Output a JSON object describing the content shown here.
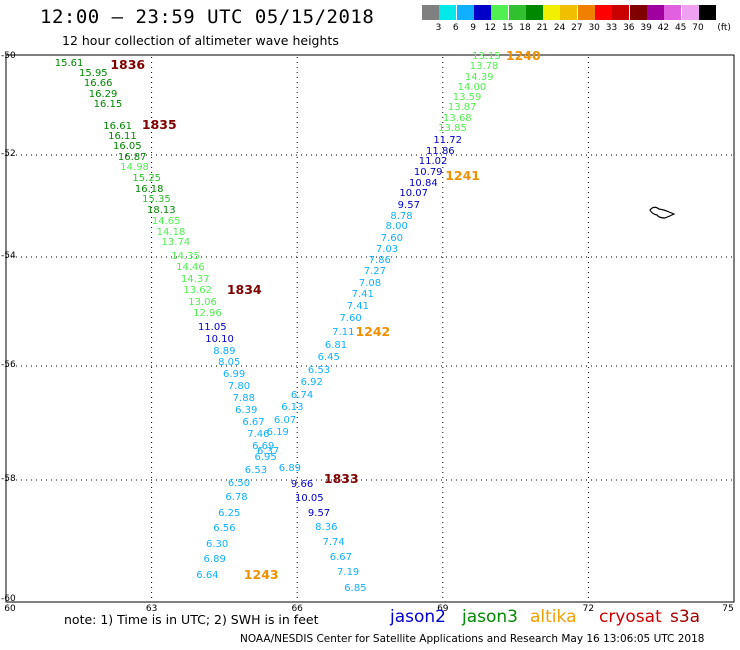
{
  "header": {
    "title": "12:00 – 23:59 UTC 05/15/2018",
    "subtitle": "12 hour collection of altimeter wave heights"
  },
  "legend": {
    "unit": "(ft)",
    "bins": [
      {
        "label": "3",
        "color": "#808080"
      },
      {
        "label": "6",
        "color": "#00e8e8"
      },
      {
        "label": "9",
        "color": "#10b0ff"
      },
      {
        "label": "12",
        "color": "#0000c8"
      },
      {
        "label": "15",
        "color": "#50f050"
      },
      {
        "label": "18",
        "color": "#30c030"
      },
      {
        "label": "21",
        "color": "#008800"
      },
      {
        "label": "24",
        "color": "#f0f000"
      },
      {
        "label": "27",
        "color": "#f0c000"
      },
      {
        "label": "30",
        "color": "#f08000"
      },
      {
        "label": "33",
        "color": "#ff0000"
      },
      {
        "label": "36",
        "color": "#c80000"
      },
      {
        "label": "39",
        "color": "#800000"
      },
      {
        "label": "42",
        "color": "#a000a0"
      },
      {
        "label": "45",
        "color": "#e060e0"
      },
      {
        "label": "70",
        "color": "#f0a0f0"
      },
      {
        "label": "",
        "color": "#000000"
      }
    ]
  },
  "axes": {
    "lon_labels": [
      "60",
      "63",
      "66",
      "69",
      "72",
      "75"
    ],
    "lat_labels": [
      "-50",
      "-52",
      "-54",
      "-56",
      "-58",
      "-60"
    ],
    "lon_range": [
      60,
      75
    ],
    "lat_range": [
      -50,
      -60
    ]
  },
  "footer": {
    "note": "note:  1) Time is in UTC;  2) SWH is in feet",
    "satellites": [
      {
        "name": "jason2",
        "color": "#0000d0"
      },
      {
        "name": "jason3",
        "color": "#008800"
      },
      {
        "name": "altika",
        "color": "#f0a000"
      },
      {
        "name": "cryosat",
        "color": "#d00000"
      },
      {
        "name": "s3a",
        "color": "#a00000"
      }
    ],
    "credit": "NOAA/NESDIS Center for Satellite Applications and Research    May 16 13:06:05 UTC 2018"
  },
  "wave_heights": [
    {
      "v": "15.61",
      "lon": 61.3,
      "lat": -50.15,
      "c": "#008800"
    },
    {
      "v": "15.95",
      "lon": 61.8,
      "lat": -50.35,
      "c": "#008800"
    },
    {
      "v": "16.66",
      "lon": 61.9,
      "lat": -50.56,
      "c": "#008800"
    },
    {
      "v": "16.29",
      "lon": 62.0,
      "lat": -50.78,
      "c": "#008800"
    },
    {
      "v": "16.15",
      "lon": 62.1,
      "lat": -50.98,
      "c": "#008800"
    },
    {
      "v": "16.61",
      "lon": 62.3,
      "lat": -51.42,
      "c": "#008800"
    },
    {
      "v": "16.11",
      "lon": 62.4,
      "lat": -51.63,
      "c": "#008800"
    },
    {
      "v": "16.05",
      "lon": 62.5,
      "lat": -51.84,
      "c": "#008800"
    },
    {
      "v": "16.87",
      "lon": 62.6,
      "lat": -52.05,
      "c": "#008800"
    },
    {
      "v": "14.98",
      "lon": 62.65,
      "lat": -52.26,
      "c": "#50f050"
    },
    {
      "v": "15.25",
      "lon": 62.9,
      "lat": -52.47,
      "c": "#30c030"
    },
    {
      "v": "16.18",
      "lon": 62.95,
      "lat": -52.68,
      "c": "#008800"
    },
    {
      "v": "15.35",
      "lon": 63.1,
      "lat": -52.89,
      "c": "#30c030"
    },
    {
      "v": "18.13",
      "lon": 63.2,
      "lat": -53.1,
      "c": "#008800"
    },
    {
      "v": "14.65",
      "lon": 63.3,
      "lat": -53.31,
      "c": "#50f050"
    },
    {
      "v": "14.18",
      "lon": 63.4,
      "lat": -53.52,
      "c": "#50f050"
    },
    {
      "v": "13.74",
      "lon": 63.5,
      "lat": -53.73,
      "c": "#50f050"
    },
    {
      "v": "14.35",
      "lon": 63.7,
      "lat": -54.0,
      "c": "#50f050"
    },
    {
      "v": "14.46",
      "lon": 63.8,
      "lat": -54.21,
      "c": "#50f050"
    },
    {
      "v": "14.37",
      "lon": 63.9,
      "lat": -54.42,
      "c": "#50f050"
    },
    {
      "v": "13.62",
      "lon": 63.95,
      "lat": -54.63,
      "c": "#50f050"
    },
    {
      "v": "13.06",
      "lon": 64.05,
      "lat": -54.84,
      "c": "#50f050"
    },
    {
      "v": "12.96",
      "lon": 64.15,
      "lat": -55.05,
      "c": "#50f050"
    },
    {
      "v": "11.05",
      "lon": 64.25,
      "lat": -55.31,
      "c": "#0000c8"
    },
    {
      "v": "10.10",
      "lon": 64.4,
      "lat": -55.52,
      "c": "#0000c8"
    },
    {
      "v": "8.89",
      "lon": 64.5,
      "lat": -55.74,
      "c": "#10b0ff"
    },
    {
      "v": "8.05",
      "lon": 64.6,
      "lat": -55.95,
      "c": "#10b0ff"
    },
    {
      "v": "6.99",
      "lon": 64.7,
      "lat": -56.16,
      "c": "#10b0ff"
    },
    {
      "v": "7.80",
      "lon": 64.8,
      "lat": -56.37,
      "c": "#10b0ff"
    },
    {
      "v": "7.88",
      "lon": 64.9,
      "lat": -56.58,
      "c": "#10b0ff"
    },
    {
      "v": "6.39",
      "lon": 64.95,
      "lat": -56.79,
      "c": "#10b0ff"
    },
    {
      "v": "6.67",
      "lon": 65.1,
      "lat": -57.0,
      "c": "#10b0ff"
    },
    {
      "v": "7.46",
      "lon": 65.2,
      "lat": -57.21,
      "c": "#10b0ff"
    },
    {
      "v": "6.69",
      "lon": 65.3,
      "lat": -57.42,
      "c": "#10b0ff"
    },
    {
      "v": "6.53",
      "lon": 65.15,
      "lat": -57.85,
      "c": "#10b0ff"
    },
    {
      "v": "6.50",
      "lon": 64.8,
      "lat": -58.06,
      "c": "#10b0ff"
    },
    {
      "v": "6.78",
      "lon": 64.75,
      "lat": -58.3,
      "c": "#10b0ff"
    },
    {
      "v": "6.25",
      "lon": 64.6,
      "lat": -58.56,
      "c": "#10b0ff"
    },
    {
      "v": "6.56",
      "lon": 64.5,
      "lat": -58.82,
      "c": "#10b0ff"
    },
    {
      "v": "6.30",
      "lon": 64.35,
      "lat": -59.08,
      "c": "#10b0ff"
    },
    {
      "v": "6.89",
      "lon": 64.3,
      "lat": -59.34,
      "c": "#10b0ff"
    },
    {
      "v": "6.64",
      "lon": 64.15,
      "lat": -59.6,
      "c": "#10b0ff"
    },
    {
      "v": "13.15",
      "lon": 69.9,
      "lat": -50.0,
      "c": "#50f050"
    },
    {
      "v": "13.78",
      "lon": 69.85,
      "lat": -50.21,
      "c": "#50f050"
    },
    {
      "v": "14.39",
      "lon": 69.75,
      "lat": -50.42,
      "c": "#50f050"
    },
    {
      "v": "14.00",
      "lon": 69.6,
      "lat": -50.63,
      "c": "#50f050"
    },
    {
      "v": "13.59",
      "lon": 69.5,
      "lat": -50.84,
      "c": "#50f050"
    },
    {
      "v": "13.87",
      "lon": 69.4,
      "lat": -51.05,
      "c": "#50f050"
    },
    {
      "v": "13.68",
      "lon": 69.3,
      "lat": -51.26,
      "c": "#50f050"
    },
    {
      "v": "13.85",
      "lon": 69.2,
      "lat": -51.47,
      "c": "#50f050"
    },
    {
      "v": "11.72",
      "lon": 69.1,
      "lat": -51.72,
      "c": "#0000c8"
    },
    {
      "v": "11.86",
      "lon": 68.95,
      "lat": -51.93,
      "c": "#0000c8"
    },
    {
      "v": "11.02",
      "lon": 68.8,
      "lat": -52.14,
      "c": "#0000c8"
    },
    {
      "v": "10.79",
      "lon": 68.7,
      "lat": -52.35,
      "c": "#0000c8"
    },
    {
      "v": "10.84",
      "lon": 68.6,
      "lat": -52.56,
      "c": "#0000c8"
    },
    {
      "v": "10.07",
      "lon": 68.4,
      "lat": -52.77,
      "c": "#0000c8"
    },
    {
      "v": "9.57",
      "lon": 68.3,
      "lat": -53.0,
      "c": "#0000c8"
    },
    {
      "v": "8.78",
      "lon": 68.15,
      "lat": -53.21,
      "c": "#10b0ff"
    },
    {
      "v": "8.00",
      "lon": 68.05,
      "lat": -53.42,
      "c": "#10b0ff"
    },
    {
      "v": "7.60",
      "lon": 67.95,
      "lat": -53.65,
      "c": "#10b0ff"
    },
    {
      "v": "7.03",
      "lon": 67.85,
      "lat": -53.86,
      "c": "#10b0ff"
    },
    {
      "v": "7.86",
      "lon": 67.7,
      "lat": -54.07,
      "c": "#10b0ff"
    },
    {
      "v": "7.27",
      "lon": 67.6,
      "lat": -54.28,
      "c": "#10b0ff"
    },
    {
      "v": "7.08",
      "lon": 67.5,
      "lat": -54.49,
      "c": "#10b0ff"
    },
    {
      "v": "7.41",
      "lon": 67.35,
      "lat": -54.7,
      "c": "#10b0ff"
    },
    {
      "v": "7.41",
      "lon": 67.25,
      "lat": -54.91,
      "c": "#10b0ff"
    },
    {
      "v": "7.60",
      "lon": 67.1,
      "lat": -55.14,
      "c": "#10b0ff"
    },
    {
      "v": "7.11",
      "lon": 66.95,
      "lat": -55.4,
      "c": "#10b0ff"
    },
    {
      "v": "6.81",
      "lon": 66.8,
      "lat": -55.64,
      "c": "#10b0ff"
    },
    {
      "v": "6.45",
      "lon": 66.65,
      "lat": -55.86,
      "c": "#10b0ff"
    },
    {
      "v": "6.53",
      "lon": 66.45,
      "lat": -56.08,
      "c": "#10b0ff"
    },
    {
      "v": "6.92",
      "lon": 66.3,
      "lat": -56.3,
      "c": "#10b0ff"
    },
    {
      "v": "6.74",
      "lon": 66.1,
      "lat": -56.52,
      "c": "#10b0ff"
    },
    {
      "v": "6.13",
      "lon": 65.9,
      "lat": -56.74,
      "c": "#10b0ff"
    },
    {
      "v": "6.07",
      "lon": 65.75,
      "lat": -56.96,
      "c": "#10b0ff"
    },
    {
      "v": "6.19",
      "lon": 65.6,
      "lat": -57.18,
      "c": "#10b0ff"
    },
    {
      "v": "6.37",
      "lon": 65.4,
      "lat": -57.5,
      "c": "#10b0ff"
    },
    {
      "v": "6.95",
      "lon": 65.35,
      "lat": -57.62,
      "c": "#10b0ff"
    },
    {
      "v": "6.89",
      "lon": 65.85,
      "lat": -57.8,
      "c": "#10b0ff"
    },
    {
      "v": "9.66",
      "lon": 66.1,
      "lat": -58.08,
      "c": "#0000c8"
    },
    {
      "v": "10.05",
      "lon": 66.25,
      "lat": -58.32,
      "c": "#0000c8"
    },
    {
      "v": "9.57",
      "lon": 66.45,
      "lat": -58.56,
      "c": "#0000c8"
    },
    {
      "v": "8.36",
      "lon": 66.6,
      "lat": -58.8,
      "c": "#10b0ff"
    },
    {
      "v": "7.74",
      "lon": 66.75,
      "lat": -59.05,
      "c": "#10b0ff"
    },
    {
      "v": "6.67",
      "lon": 66.9,
      "lat": -59.3,
      "c": "#10b0ff"
    },
    {
      "v": "7.19",
      "lon": 67.05,
      "lat": -59.55,
      "c": "#10b0ff"
    },
    {
      "v": "6.85",
      "lon": 67.2,
      "lat": -59.82,
      "c": "#10b0ff"
    }
  ],
  "pass_labels": [
    {
      "t": "1836",
      "lon": 62.15,
      "lat": -50.18,
      "c": "#800000"
    },
    {
      "t": "1835",
      "lon": 62.8,
      "lat": -51.4,
      "c": "#800000"
    },
    {
      "t": "1834",
      "lon": 64.55,
      "lat": -54.63,
      "c": "#800000"
    },
    {
      "t": "1833",
      "lon": 66.55,
      "lat": -58.0,
      "c": "#800000"
    },
    {
      "t": "1240",
      "lon": 70.3,
      "lat": -50.0,
      "c": "#f09000"
    },
    {
      "t": "1241",
      "lon": 69.05,
      "lat": -52.43,
      "c": "#f09000"
    },
    {
      "t": "1242",
      "lon": 67.2,
      "lat": -55.4,
      "c": "#f09000"
    },
    {
      "t": "1243",
      "lon": 64.9,
      "lat": -59.6,
      "c": "#f09000"
    }
  ]
}
